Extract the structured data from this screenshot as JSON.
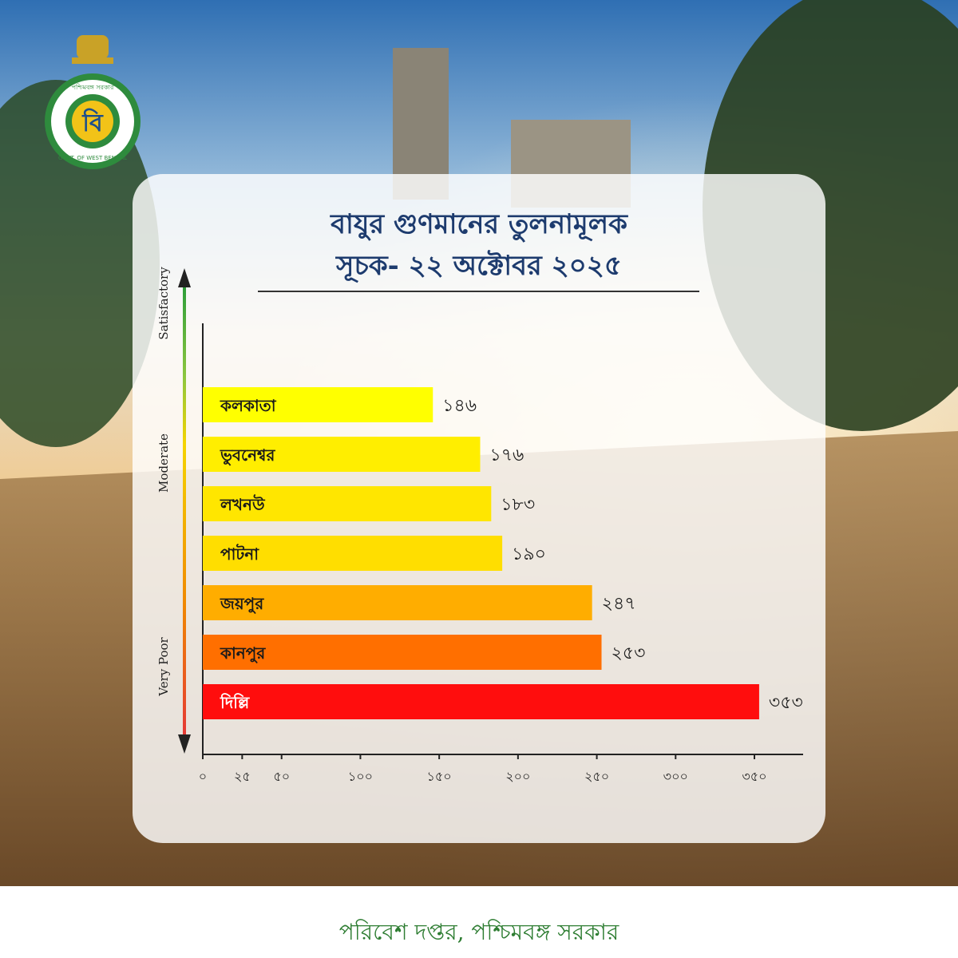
{
  "logo": {
    "ring_text_top": "পশ্চিমবঙ্গ সরকার",
    "ring_text_bottom": "GOVT. OF WEST BENGAL",
    "center_letter": "বি"
  },
  "title": {
    "line1": "বাযুর গুণমানের তুলনামূলক",
    "line2": "সূচক- ২২ অক্টোবর ২০২৫"
  },
  "scale_labels": [
    "Satisfactory",
    "Moderate",
    "Very Poor"
  ],
  "footer": "পরিবেশ দপ্তর, পশ্চিমবঙ্গ সরকার",
  "colors": {
    "title": "#1d3b6e",
    "footer": "#2e7d32",
    "gradient": [
      "#2e9e3a",
      "#f5d400",
      "#f08a00",
      "#e53935"
    ]
  },
  "chart_data": {
    "type": "bar",
    "orientation": "horizontal",
    "categories": [
      "কলকাতা",
      "ভুবনেশ্বর",
      "লখনউ",
      "পাটনা",
      "জয়পুর",
      "কানপুর",
      "দিল্লি"
    ],
    "values": [
      146,
      176,
      183,
      190,
      247,
      253,
      353
    ],
    "value_labels": [
      "১৪৬",
      "১৭৬",
      "১৮৩",
      "১৯০",
      "২৪৭",
      "২৫৩",
      "৩৫৩"
    ],
    "bar_colors": [
      "#ffff00",
      "#ffee00",
      "#ffe600",
      "#ffde00",
      "#ffad00",
      "#ff6f00",
      "#ff0d0d"
    ],
    "xticks": [
      {
        "value": 0,
        "label": "০"
      },
      {
        "value": 25,
        "label": "২৫"
      },
      {
        "value": 50,
        "label": "৫০"
      },
      {
        "value": 100,
        "label": "১০০"
      },
      {
        "value": 150,
        "label": "১৫০"
      },
      {
        "value": 200,
        "label": "২০০"
      },
      {
        "value": 250,
        "label": "২৫০"
      },
      {
        "value": 300,
        "label": "৩০০"
      },
      {
        "value": 350,
        "label": "৩৫০"
      }
    ]
  }
}
